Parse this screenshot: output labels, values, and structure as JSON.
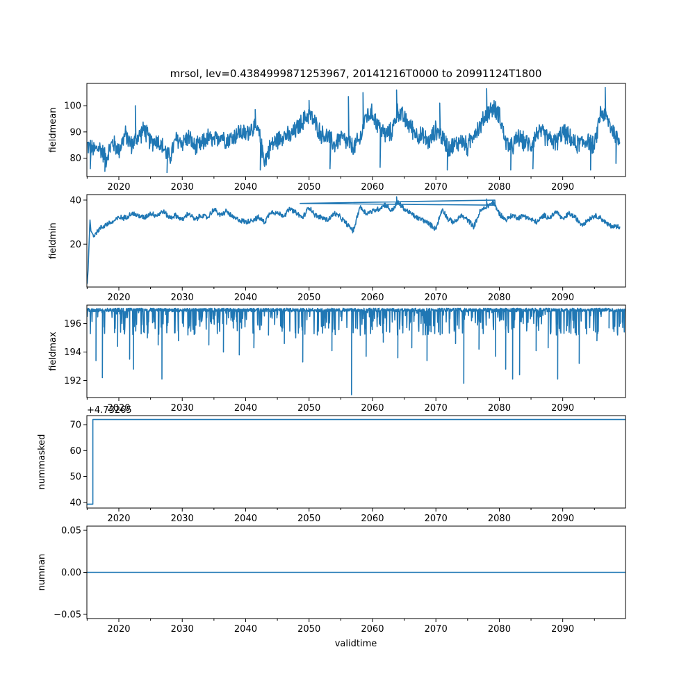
{
  "figure": {
    "title": "mrsol, lev=0.4384999871253967, 20141216T0000 to 20991124T1800",
    "xlabel": "validtime"
  },
  "colors": {
    "line": "#1f77b4",
    "axes": "#000000",
    "background": "#ffffff"
  },
  "chart_data": [
    {
      "type": "line",
      "name": "fieldmean",
      "ylabel": "fieldmean",
      "xlim": [
        2014.96,
        2099.9
      ],
      "ylim": [
        73.0,
        108.5
      ],
      "yticks": [
        80,
        90,
        100
      ],
      "ytick_labels": [
        "80",
        "90",
        "100"
      ],
      "xticks": [
        2020,
        2030,
        2040,
        2050,
        2060,
        2070,
        2080,
        2090
      ],
      "xtick_labels": [
        "2020",
        "2030",
        "2040",
        "2050",
        "2060",
        "2070",
        "2080",
        "2090"
      ],
      "x": [
        2015,
        2016,
        2017,
        2018,
        2019,
        2020,
        2021,
        2022,
        2023,
        2024,
        2025,
        2026,
        2027,
        2028,
        2029,
        2030,
        2031,
        2032,
        2033,
        2034,
        2035,
        2036,
        2037,
        2038,
        2039,
        2040,
        2041,
        2042,
        2043,
        2044,
        2045,
        2046,
        2047,
        2048,
        2049,
        2050,
        2051,
        2052,
        2053,
        2054,
        2055,
        2056,
        2057,
        2058,
        2059,
        2060,
        2061,
        2062,
        2063,
        2064,
        2065,
        2066,
        2067,
        2068,
        2069,
        2070,
        2071,
        2072,
        2073,
        2074,
        2075,
        2076,
        2077,
        2078,
        2079,
        2080,
        2081,
        2082,
        2083,
        2084,
        2085,
        2086,
        2087,
        2088,
        2089,
        2090,
        2091,
        2092,
        2093,
        2094,
        2095,
        2096,
        2097,
        2098,
        2099
      ],
      "values": [
        85,
        83,
        84,
        80,
        86,
        83,
        89,
        85,
        88,
        91,
        86,
        87,
        84,
        80,
        87,
        86,
        88,
        84,
        85,
        88,
        86,
        89,
        87,
        88,
        90,
        89,
        92,
        90,
        79,
        85,
        87,
        89,
        88,
        91,
        94,
        97,
        93,
        89,
        88,
        85,
        88,
        86,
        84,
        87,
        96,
        97,
        92,
        89,
        90,
        98,
        95,
        92,
        89,
        88,
        86,
        91,
        88,
        84,
        85,
        87,
        84,
        90,
        92,
        97,
        99,
        97,
        86,
        84,
        88,
        86,
        85,
        90,
        89,
        87,
        86,
        90,
        88,
        85,
        86,
        87,
        84,
        98,
        95,
        90,
        86
      ],
      "spikes_high": [
        [
          2022.6,
          100
        ],
        [
          2041.5,
          98.5
        ],
        [
          2050.0,
          102
        ],
        [
          2056.2,
          103.5
        ],
        [
          2058.5,
          105
        ],
        [
          2063.8,
          106
        ],
        [
          2070.6,
          101
        ],
        [
          2078.0,
          106.5
        ],
        [
          2096.7,
          107
        ]
      ],
      "spikes_low": [
        [
          2015.5,
          76
        ],
        [
          2017.8,
          75
        ],
        [
          2027.6,
          74.5
        ],
        [
          2042.3,
          75.5
        ],
        [
          2053.3,
          76
        ],
        [
          2061.2,
          76.5
        ],
        [
          2071.8,
          75.5
        ],
        [
          2081.8,
          75.5
        ],
        [
          2085.3,
          76
        ],
        [
          2094.4,
          75.5
        ],
        [
          2098.4,
          78
        ]
      ]
    },
    {
      "type": "line",
      "name": "fieldmin",
      "ylabel": "fieldmin",
      "xlim": [
        2014.96,
        2099.9
      ],
      "ylim": [
        0.5,
        42.5
      ],
      "yticks": [
        20,
        40
      ],
      "ytick_labels": [
        "20",
        "40"
      ],
      "xticks": [
        2020,
        2030,
        2040,
        2050,
        2060,
        2070,
        2080,
        2090
      ],
      "xtick_labels": [
        "2020",
        "2030",
        "2040",
        "2050",
        "2060",
        "2070",
        "2080",
        "2090"
      ],
      "x": [
        2015.0,
        2015.15,
        2015.3,
        2015.45,
        2015.6,
        2016,
        2017,
        2018,
        2019,
        2020,
        2021,
        2022,
        2023,
        2024,
        2025,
        2026,
        2027,
        2028,
        2029,
        2030,
        2031,
        2032,
        2033,
        2034,
        2035,
        2036,
        2037,
        2038,
        2039,
        2040,
        2041,
        2042,
        2043,
        2044,
        2045,
        2046,
        2047,
        2048,
        2049,
        2050,
        2051,
        2052,
        2053,
        2054,
        2055,
        2056,
        2057,
        2058,
        2059,
        2060,
        2061,
        2062,
        2063,
        2064,
        2065,
        2066,
        2067,
        2068,
        2069,
        2070,
        2071,
        2072,
        2073,
        2074,
        2075,
        2076,
        2077,
        2078,
        2079,
        2080,
        2081,
        2082,
        2083,
        2084,
        2085,
        2086,
        2087,
        2088,
        2089,
        2090,
        2091,
        2092,
        2093,
        2094,
        2095,
        2096,
        2097,
        2098,
        2099
      ],
      "values": [
        2,
        8,
        20,
        31,
        26,
        24,
        27,
        29,
        30,
        32,
        32,
        34,
        33,
        32,
        34,
        33,
        35,
        32,
        33,
        31,
        34,
        31,
        33,
        32,
        36,
        33,
        35,
        32,
        31,
        30,
        31,
        32,
        30,
        35,
        34,
        33,
        36,
        34,
        32,
        37,
        33,
        32,
        31,
        34,
        32,
        29,
        26,
        37,
        34,
        35,
        36,
        38,
        35,
        39,
        36,
        34,
        32,
        31,
        29,
        27,
        36,
        31,
        30,
        33,
        31,
        28,
        35,
        37,
        39,
        34,
        31,
        33,
        32,
        33,
        31,
        30,
        33,
        32,
        35,
        31,
        34,
        32,
        29,
        31,
        33,
        32,
        29,
        28,
        28
      ],
      "spikes_high": [
        [
          2063.8,
          41.5
        ],
        [
          2078.0,
          40.5
        ],
        [
          2079.3,
          40
        ],
        [
          2048.6,
          38.5
        ]
      ],
      "spikes_low": []
    },
    {
      "type": "line",
      "name": "fieldmax",
      "ylabel": "fieldmax",
      "xlim": [
        2014.96,
        2099.9
      ],
      "ylim": [
        190.8,
        197.3
      ],
      "yticks": [
        192,
        194,
        196
      ],
      "ytick_labels": [
        "192",
        "194",
        "196"
      ],
      "xticks": [
        2020,
        2030,
        2040,
        2050,
        2060,
        2070,
        2080,
        2090
      ],
      "xtick_labels": [
        "2020",
        "2030",
        "2040",
        "2050",
        "2060",
        "2070",
        "2080",
        "2090"
      ],
      "baseline": 197.08,
      "dips": [
        [
          2016.4,
          193.4
        ],
        [
          2017.4,
          192.2
        ],
        [
          2019.8,
          194.4
        ],
        [
          2021.7,
          193.5
        ],
        [
          2022.3,
          192.8
        ],
        [
          2024.5,
          195.0
        ],
        [
          2026.2,
          194.5
        ],
        [
          2026.8,
          192.1
        ],
        [
          2029.4,
          194.8
        ],
        [
          2032.0,
          195.3
        ],
        [
          2034.2,
          194.5
        ],
        [
          2036.5,
          194.0
        ],
        [
          2039.0,
          193.8
        ],
        [
          2041.3,
          194.3
        ],
        [
          2043.6,
          195.2
        ],
        [
          2046.1,
          194.6
        ],
        [
          2047.9,
          195.0
        ],
        [
          2049.0,
          193.3
        ],
        [
          2051.3,
          195.2
        ],
        [
          2053.6,
          194.1
        ],
        [
          2056.7,
          191.0
        ],
        [
          2059.0,
          193.7
        ],
        [
          2061.7,
          194.7
        ],
        [
          2064.0,
          193.6
        ],
        [
          2066.2,
          194.3
        ],
        [
          2068.6,
          193.4
        ],
        [
          2071.0,
          195.3
        ],
        [
          2073.1,
          194.6
        ],
        [
          2074.4,
          191.8
        ],
        [
          2076.8,
          194.2
        ],
        [
          2079.4,
          193.7
        ],
        [
          2081.0,
          192.8
        ],
        [
          2082.1,
          192.1
        ],
        [
          2083.2,
          192.4
        ],
        [
          2085.8,
          194.1
        ],
        [
          2087.7,
          194.3
        ],
        [
          2089.2,
          192.1
        ],
        [
          2090.6,
          195.5
        ],
        [
          2092.6,
          193.2
        ],
        [
          2095.4,
          194.8
        ],
        [
          2097.3,
          195.7
        ],
        [
          2099.4,
          196.1
        ]
      ]
    },
    {
      "type": "line",
      "name": "nummasked",
      "ylabel": "nummasked",
      "offset_label": "+4.73265",
      "xlim": [
        2014.96,
        2099.9
      ],
      "ylim": [
        37.8,
        73.5
      ],
      "yticks": [
        40,
        50,
        60,
        70
      ],
      "ytick_labels": [
        "40",
        "50",
        "60",
        "70"
      ],
      "xticks": [
        2020,
        2030,
        2040,
        2050,
        2060,
        2070,
        2080,
        2090
      ],
      "xtick_labels": [
        "2020",
        "2030",
        "2040",
        "2050",
        "2060",
        "2070",
        "2080",
        "2090"
      ],
      "x": [
        2014.96,
        2015.9,
        2015.9,
        2099.9
      ],
      "values": [
        39.3,
        39.3,
        72.0,
        72.0
      ]
    },
    {
      "type": "line",
      "name": "numnan",
      "ylabel": "numnan",
      "xlim": [
        2014.96,
        2099.9
      ],
      "ylim": [
        -0.055,
        0.055
      ],
      "yticks": [
        -0.05,
        0.0,
        0.05
      ],
      "ytick_labels": [
        "−0.05",
        "0.00",
        "0.05"
      ],
      "xticks": [
        2020,
        2030,
        2040,
        2050,
        2060,
        2070,
        2080,
        2090
      ],
      "xtick_labels": [
        "2020",
        "2030",
        "2040",
        "2050",
        "2060",
        "2070",
        "2080",
        "2090"
      ],
      "x": [
        2014.96,
        2099.9
      ],
      "values": [
        0.0,
        0.0
      ]
    }
  ]
}
